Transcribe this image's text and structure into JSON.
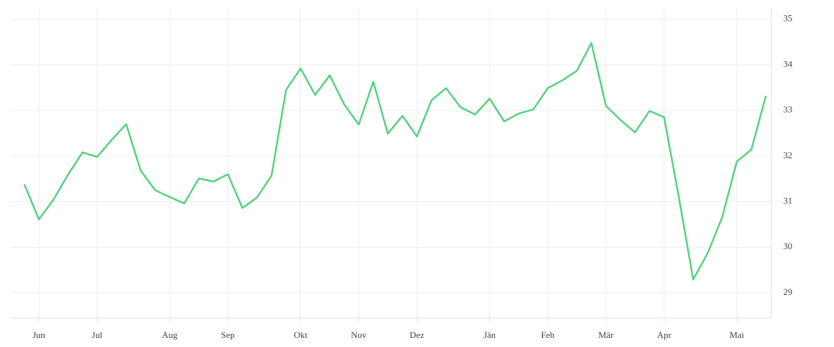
{
  "chart_data": {
    "type": "line",
    "categories": [
      null,
      "Jun",
      null,
      null,
      null,
      "Jul",
      null,
      null,
      null,
      null,
      "Aug",
      null,
      null,
      null,
      "Sep",
      null,
      null,
      null,
      null,
      "Okt",
      null,
      null,
      null,
      "Nov",
      null,
      null,
      null,
      "Dez",
      null,
      null,
      null,
      null,
      "Jän",
      null,
      null,
      null,
      "Feb",
      null,
      null,
      null,
      "Mär",
      null,
      null,
      null,
      "Apr",
      null,
      null,
      null,
      null,
      "Mai",
      null,
      null
    ],
    "series": [
      {
        "color": "#50d27c",
        "values": [
          31.38,
          30.61,
          31.04,
          31.59,
          32.08,
          31.98,
          32.35,
          32.7,
          31.68,
          31.25,
          31.1,
          30.96,
          31.51,
          31.44,
          31.6,
          30.86,
          31.09,
          31.57,
          33.45,
          33.92,
          33.34,
          33.77,
          33.13,
          32.69,
          33.63,
          32.49,
          32.88,
          32.43,
          33.22,
          33.49,
          33.07,
          32.91,
          33.26,
          32.76,
          32.93,
          33.02,
          33.49,
          33.66,
          33.87,
          34.48,
          33.1,
          32.79,
          32.52,
          32.99,
          32.85,
          31.12,
          29.29,
          29.87,
          30.66,
          31.88,
          32.14,
          33.32
        ]
      }
    ],
    "ylim": [
      28.45,
      35.24
    ],
    "yticks": [
      29,
      30,
      31,
      32,
      33,
      34,
      35
    ],
    "grid": true,
    "y_axis_side": "right"
  }
}
